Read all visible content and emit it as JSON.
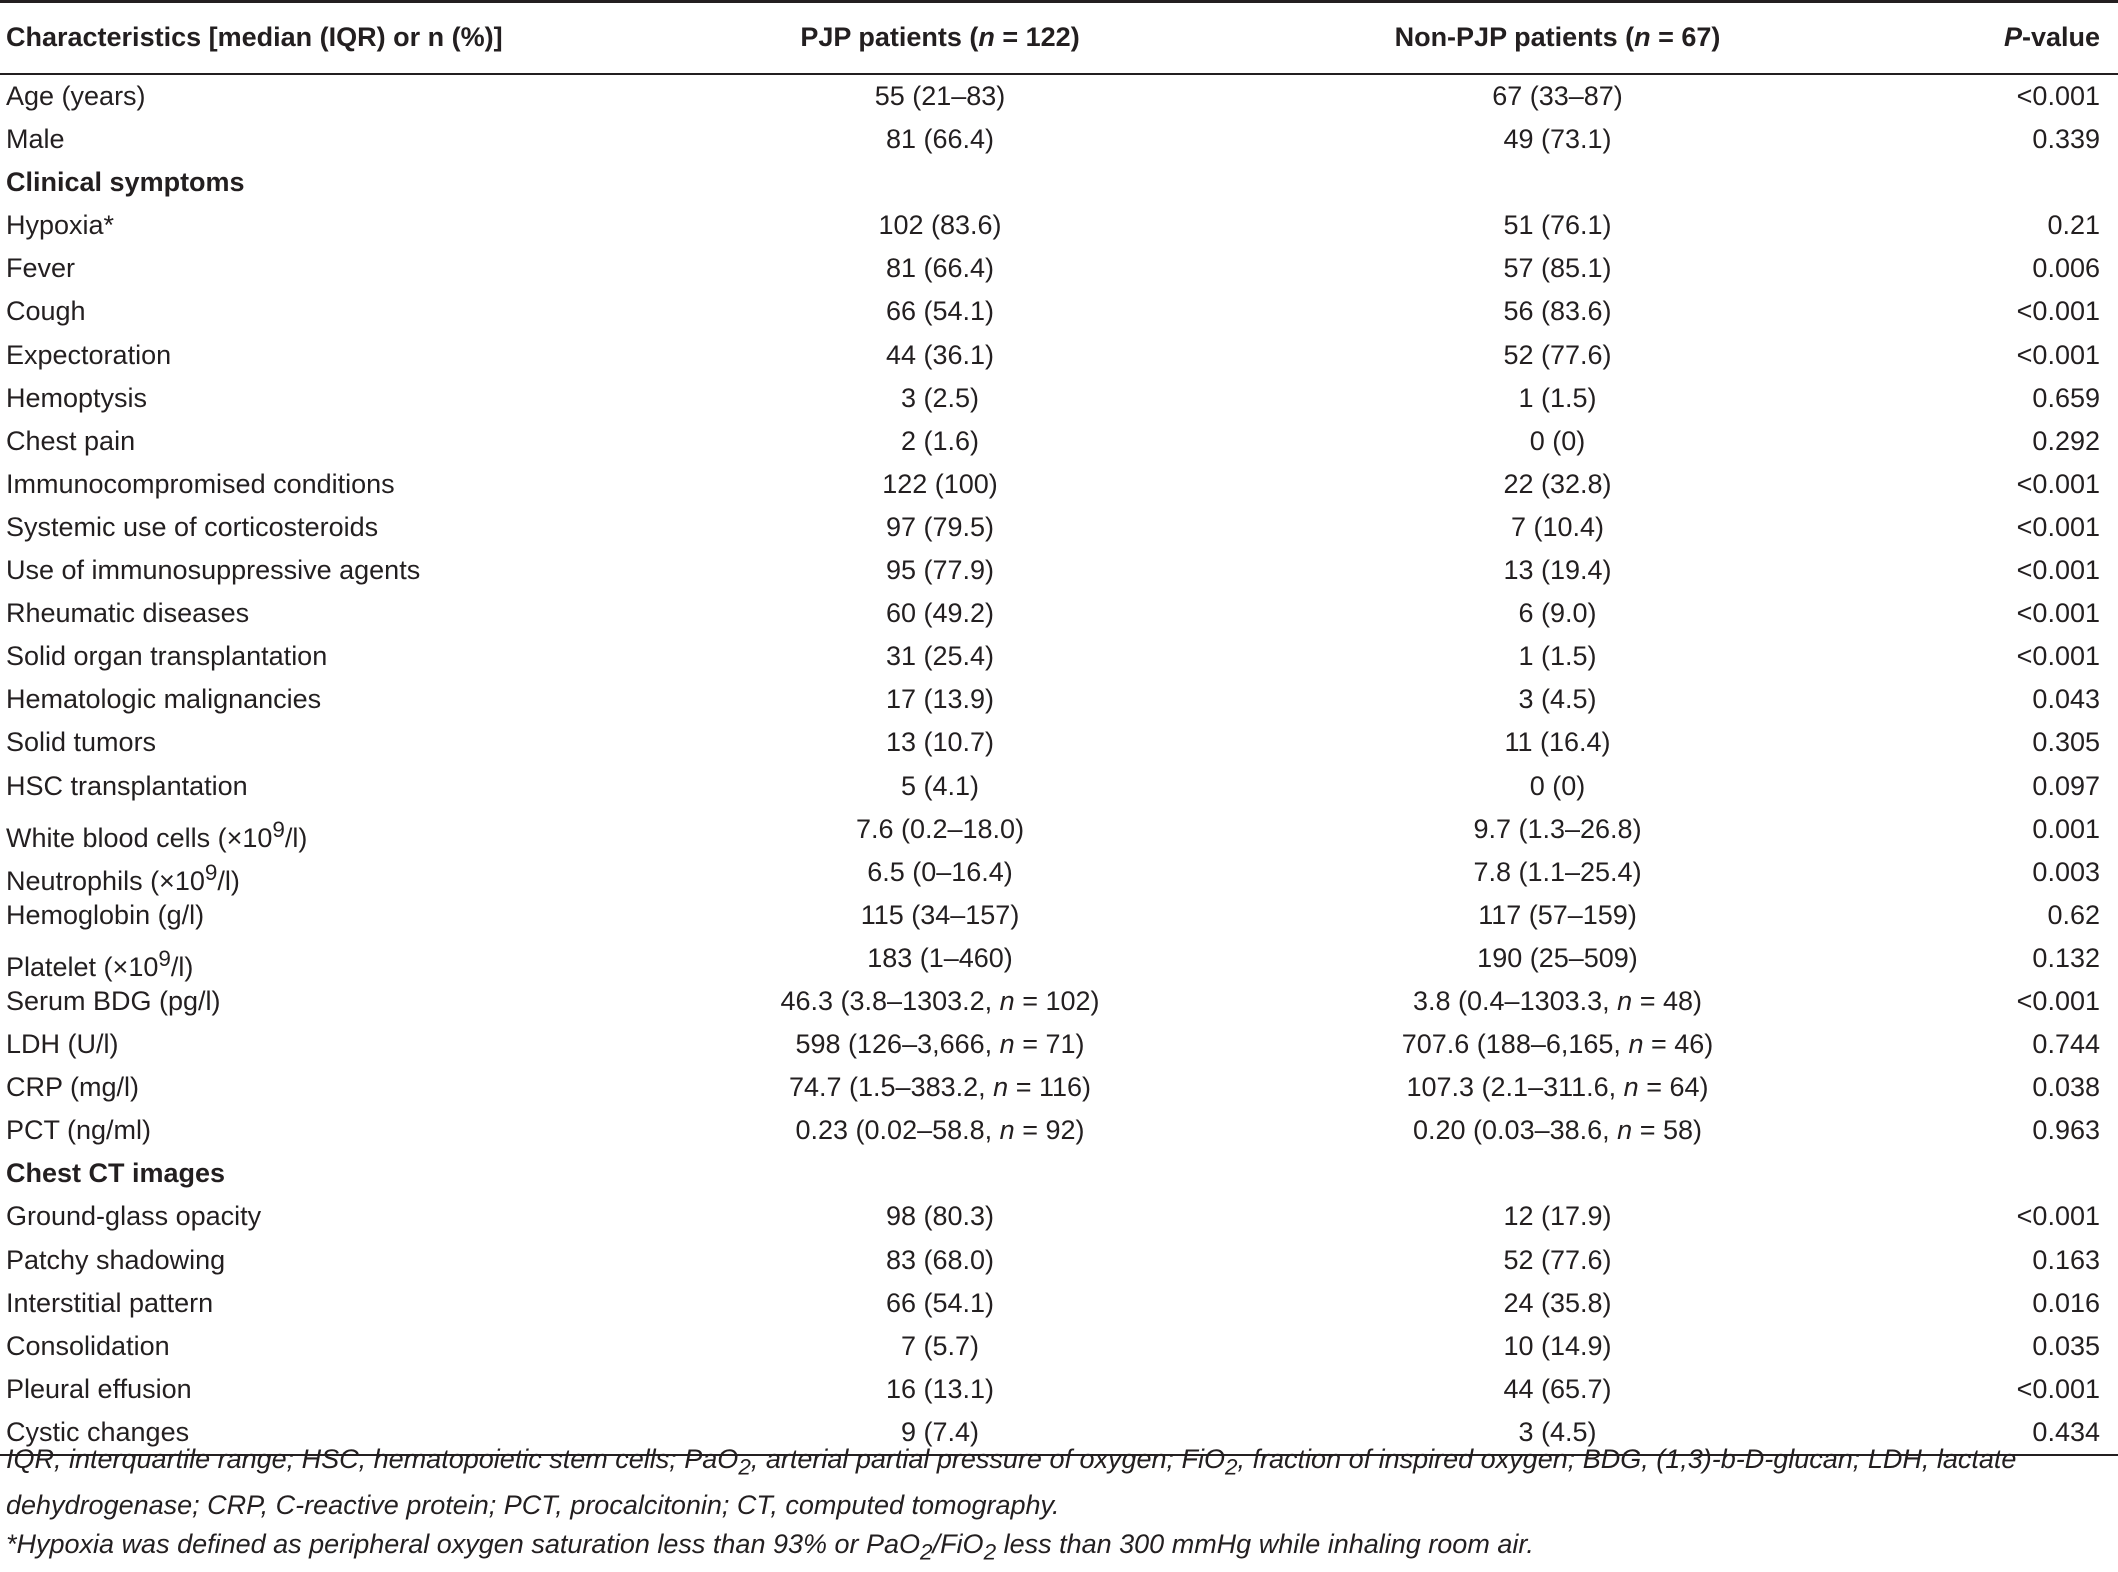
{
  "table": {
    "headers": {
      "characteristics": "Characteristics [median (IQR) or n (%)]",
      "pjp_prefix": "PJP patients (",
      "pjp_n": "n",
      "pjp_suffix": " = 122)",
      "nonpjp_prefix": "Non-PJP patients (",
      "nonpjp_n": "n",
      "nonpjp_suffix": " = 67)",
      "p_prefix": "P",
      "p_suffix": "-value"
    },
    "rows": [
      {
        "label": "Age (years)",
        "pjp": "55 (21–83)",
        "nonpjp": "67 (33–87)",
        "p": "<0.001"
      },
      {
        "label": "Male",
        "pjp": "81 (66.4)",
        "nonpjp": "49 (73.1)",
        "p": "0.339"
      },
      {
        "label": "Clinical symptoms",
        "section": true
      },
      {
        "label": "Hypoxia*",
        "pjp": "102 (83.6)",
        "nonpjp": "51 (76.1)",
        "p": "0.21"
      },
      {
        "label": "Fever",
        "pjp": "81 (66.4)",
        "nonpjp": "57 (85.1)",
        "p": "0.006"
      },
      {
        "label": "Cough",
        "pjp": "66 (54.1)",
        "nonpjp": "56 (83.6)",
        "p": "<0.001"
      },
      {
        "label": "Expectoration",
        "pjp": "44 (36.1)",
        "nonpjp": "52 (77.6)",
        "p": "<0.001"
      },
      {
        "label": "Hemoptysis",
        "pjp": "3 (2.5)",
        "nonpjp": "1 (1.5)",
        "p": "0.659"
      },
      {
        "label": "Chest pain",
        "pjp": "2 (1.6)",
        "nonpjp": "0 (0)",
        "p": "0.292"
      },
      {
        "label": "Immunocompromised conditions",
        "pjp": "122 (100)",
        "nonpjp": "22 (32.8)",
        "p": "<0.001"
      },
      {
        "label": "Systemic use of corticosteroids",
        "pjp": "97 (79.5)",
        "nonpjp": "7 (10.4)",
        "p": "<0.001"
      },
      {
        "label": "Use of immunosuppressive agents",
        "pjp": "95 (77.9)",
        "nonpjp": "13 (19.4)",
        "p": "<0.001"
      },
      {
        "label": "Rheumatic diseases",
        "pjp": "60 (49.2)",
        "nonpjp": "6 (9.0)",
        "p": "<0.001"
      },
      {
        "label": "Solid organ transplantation",
        "pjp": "31 (25.4)",
        "nonpjp": "1 (1.5)",
        "p": "<0.001"
      },
      {
        "label": "Hematologic malignancies",
        "pjp": "17 (13.9)",
        "nonpjp": "3 (4.5)",
        "p": "0.043"
      },
      {
        "label": "Solid tumors",
        "pjp": "13 (10.7)",
        "nonpjp": "11 (16.4)",
        "p": "0.305"
      },
      {
        "label": "HSC transplantation",
        "pjp": "5 (4.1)",
        "nonpjp": "0 (0)",
        "p": "0.097"
      },
      {
        "label": "White blood cells (×10",
        "sup": "9",
        "label_suffix": "/l)",
        "pjp": "7.6 (0.2–18.0)",
        "nonpjp": "9.7 (1.3–26.8)",
        "p": "0.001"
      },
      {
        "label": "Neutrophils (×10",
        "sup": "9",
        "label_suffix": "/l)",
        "pjp": "6.5 (0–16.4)",
        "nonpjp": "7.8 (1.1–25.4)",
        "p": "0.003"
      },
      {
        "label": "Hemoglobin (g/l)",
        "pjp": "115 (34–157)",
        "nonpjp": "117 (57–159)",
        "p": "0.62"
      },
      {
        "label": "Platelet (×10",
        "sup": "9",
        "label_suffix": "/l)",
        "pjp": "183 (1–460)",
        "nonpjp": "190 (25–509)",
        "p": "0.132"
      },
      {
        "label": "Serum BDG (pg/l)",
        "pjp_a": "46.3 (3.8–1303.2, ",
        "pjp_n": "n",
        "pjp_b": " = 102)",
        "nonpjp_a": "3.8 (0.4–1303.3, ",
        "nonpjp_n": "n",
        "nonpjp_b": " = 48)",
        "p": "<0.001"
      },
      {
        "label": "LDH (U/l)",
        "pjp_a": "598 (126–3,666, ",
        "pjp_n": "n",
        "pjp_b": " = 71)",
        "nonpjp_a": "707.6 (188–6,165, ",
        "nonpjp_n": "n",
        "nonpjp_b": " = 46)",
        "p": "0.744"
      },
      {
        "label": "CRP (mg/l)",
        "pjp_a": "74.7 (1.5–383.2, ",
        "pjp_n": "n",
        "pjp_b": " = 116)",
        "nonpjp_a": "107.3 (2.1–311.6, ",
        "nonpjp_n": "n",
        "nonpjp_b": " = 64)",
        "p": "0.038"
      },
      {
        "label": "PCT (ng/ml)",
        "pjp_a": "0.23 (0.02–58.8, ",
        "pjp_n": "n",
        "pjp_b": " = 92)",
        "nonpjp_a": "0.20 (0.03–38.6, ",
        "nonpjp_n": "n",
        "nonpjp_b": " = 58)",
        "p": "0.963"
      },
      {
        "label": "Chest CT images",
        "section": true
      },
      {
        "label": "Ground-glass opacity",
        "pjp": "98 (80.3)",
        "nonpjp": "12 (17.9)",
        "p": "<0.001"
      },
      {
        "label": "Patchy shadowing",
        "pjp": "83 (68.0)",
        "nonpjp": "52 (77.6)",
        "p": "0.163"
      },
      {
        "label": "Interstitial pattern",
        "pjp": "66 (54.1)",
        "nonpjp": "24 (35.8)",
        "p": "0.016"
      },
      {
        "label": "Consolidation",
        "pjp": "7 (5.7)",
        "nonpjp": "10 (14.9)",
        "p": "0.035"
      },
      {
        "label": "Pleural effusion",
        "pjp": "16 (13.1)",
        "nonpjp": "44 (65.7)",
        "p": "<0.001"
      },
      {
        "label": "Cystic changes",
        "pjp": "9 (7.4)",
        "nonpjp": "3 (4.5)",
        "p": "0.434"
      }
    ]
  },
  "footnotes": {
    "abbrev_1": "IQR, interquartile range; HSC, hematopoietic stem cells; PaO",
    "abbrev_sub1": "2",
    "abbrev_2": ", arterial partial pressure of oxygen; FiO",
    "abbrev_sub2": "2",
    "abbrev_3": ", fraction of inspired oxygen; BDG, (1,3)-b-D-glucan; LDH, lactate dehydrogenase; CRP, C-reactive protein; PCT, procalcitonin; CT, computed tomography.",
    "hypoxia_1": "*Hypoxia was defined as peripheral oxygen saturation less than 93% or PaO",
    "hypoxia_sub1": "2",
    "hypoxia_2": "/FiO",
    "hypoxia_sub2": "2",
    "hypoxia_3": " less than 300 mmHg while inhaling room air."
  }
}
